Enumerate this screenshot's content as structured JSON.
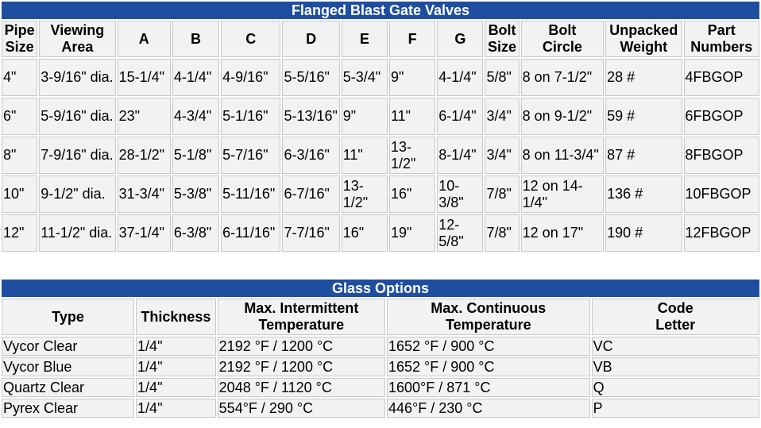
{
  "valves": {
    "title": "Flanged Blast Gate Valves",
    "columns": [
      {
        "line1": "Pipe",
        "line2": "Size"
      },
      {
        "line1": "Viewing",
        "line2": "Area"
      },
      {
        "line1": "A",
        "line2": ""
      },
      {
        "line1": "B",
        "line2": ""
      },
      {
        "line1": "C",
        "line2": ""
      },
      {
        "line1": "D",
        "line2": ""
      },
      {
        "line1": "E",
        "line2": ""
      },
      {
        "line1": "F",
        "line2": ""
      },
      {
        "line1": "G",
        "line2": ""
      },
      {
        "line1": "Bolt",
        "line2": "Size"
      },
      {
        "line1": "Bolt",
        "line2": "Circle"
      },
      {
        "line1": "Unpacked",
        "line2": "Weight"
      },
      {
        "line1": "Part",
        "line2": "Numbers"
      }
    ],
    "rows": [
      [
        "4\"",
        "3-9/16\" dia.",
        "15-1/4\"",
        "4-1/4\"",
        "4-9/16\"",
        "5-5/16\"",
        "5-3/4\"",
        "9\"",
        "4-1/4\"",
        "5/8\"",
        "8 on 7-1/2\"",
        "28 #",
        "4FBGOP"
      ],
      [
        "6\"",
        "5-9/16\" dia.",
        "23\"",
        "4-3/4\"",
        "5-1/16\"",
        "5-13/16\"",
        "9\"",
        "11\"",
        "6-1/4\"",
        "3/4\"",
        "8 on 9-1/2\"",
        "59 #",
        "6FBGOP"
      ],
      [
        "8\"",
        "7-9/16\" dia.",
        "28-1/2\"",
        "5-1/8\"",
        "5-7/16\"",
        "6-3/16\"",
        "11\"",
        "13-1/2\"",
        "8-1/4\"",
        "3/4\"",
        "8 on 11-3/4\"",
        "87 #",
        "8FBGOP"
      ],
      [
        "10\"",
        "9-1/2\" dia.",
        "31-3/4\"",
        "5-3/8\"",
        "5-11/16\"",
        "6-7/16\"",
        "13-1/2\"",
        "16\"",
        "10-3/8\"",
        "7/8\"",
        "12 on 14-1/4\"",
        "136 #",
        "10FBGOP"
      ],
      [
        "12\"",
        "11-1/2\" dia.",
        "37-1/4\"",
        "6-3/8\"",
        "6-11/16\"",
        "7-7/16\"",
        "16\"",
        "19\"",
        "12-5/8\"",
        "7/8\"",
        "12 on 17\"",
        "190 #",
        "12FBGOP"
      ]
    ]
  },
  "glass": {
    "title": "Glass Options",
    "columns": [
      {
        "line1": "Type",
        "line2": ""
      },
      {
        "line1": "Thickness",
        "line2": ""
      },
      {
        "line1": "Max. Intermittent",
        "line2": "Temperature"
      },
      {
        "line1": "Max. Continuous",
        "line2": "Temperature"
      },
      {
        "line1": "Code",
        "line2": "Letter"
      }
    ],
    "rows": [
      [
        "Vycor Clear",
        "1/4\"",
        "2192 °F / 1200 °C",
        "1652 °F / 900 °C",
        "VC"
      ],
      [
        "Vycor Blue",
        "1/4\"",
        "2192 °F / 1200 °C",
        "1652 °F / 900 °C",
        "VB"
      ],
      [
        "Quartz Clear",
        "1/4\"",
        "2048 °F / 1120 °C",
        "1600°F / 871 °C",
        "Q"
      ],
      [
        "Pyrex Clear",
        "1/4\"",
        "554°F / 290 °C",
        "446°F / 230 °C",
        "P"
      ]
    ]
  },
  "colors": {
    "banner": "#1f4ea0",
    "cell": "#f2f2f2"
  }
}
